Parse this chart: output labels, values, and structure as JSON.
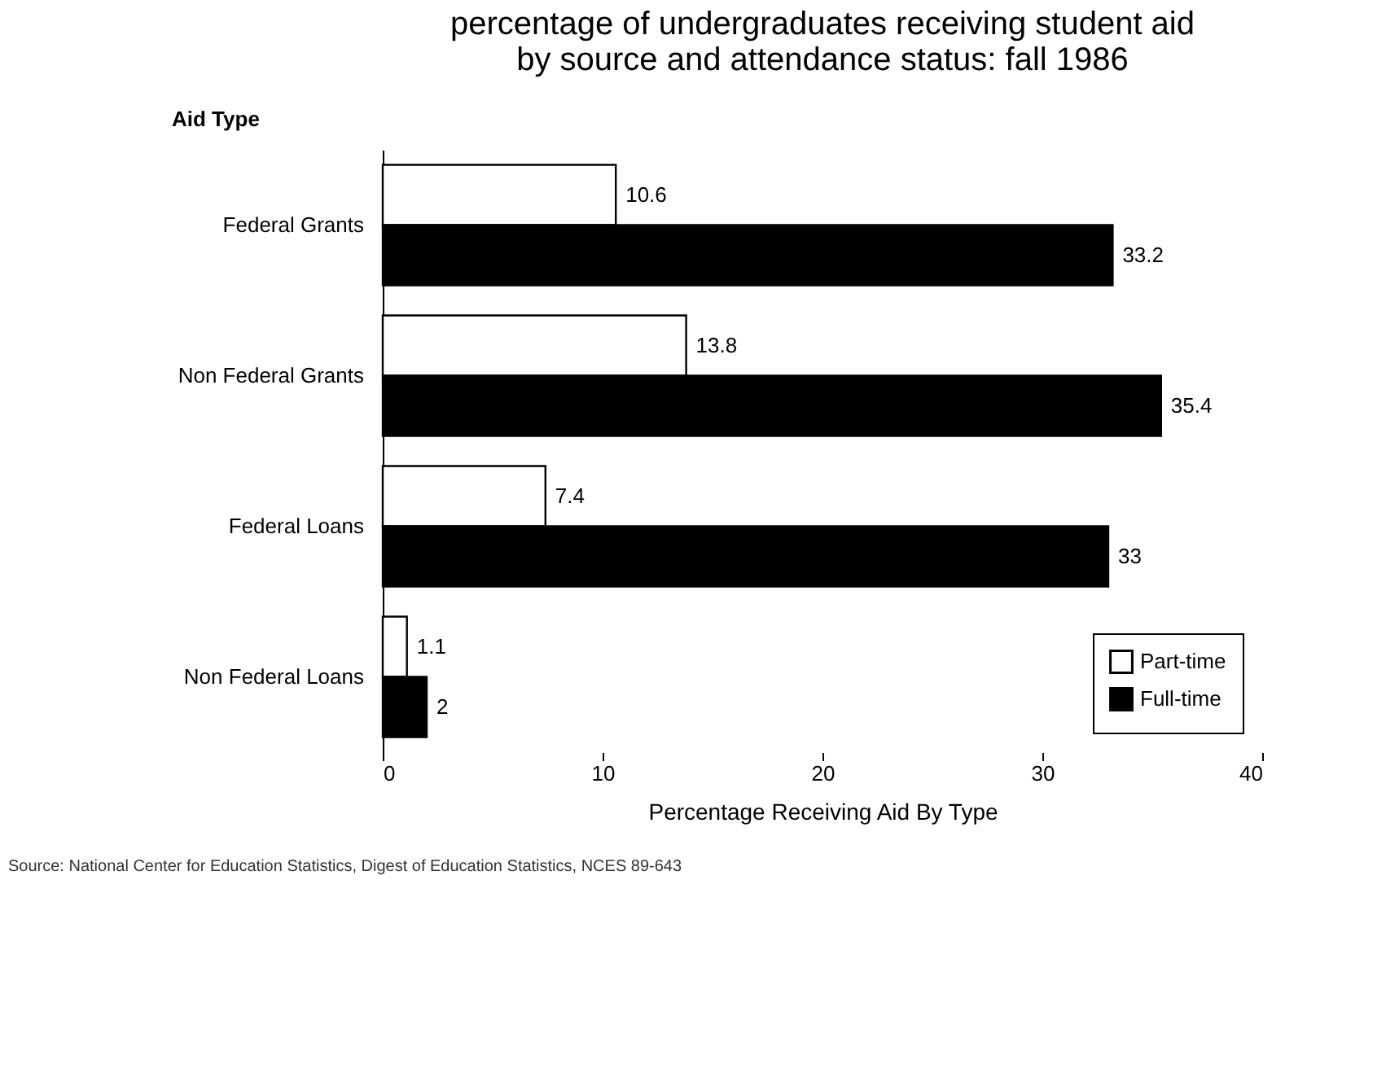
{
  "chart_data": {
    "type": "bar",
    "orientation": "horizontal",
    "title": "percentage of undergraduates receiving student aid\nby source and attendance status:  fall 1986",
    "xlabel": "Percentage Receiving Aid By Type",
    "ylabel": "Aid Type",
    "categories": [
      "Federal Grants",
      "Non Federal Grants",
      "Federal Loans",
      "Non Federal Loans"
    ],
    "series": [
      {
        "name": "Part-time",
        "color": "#ffffff",
        "values": [
          10.6,
          13.8,
          7.4,
          1.1
        ]
      },
      {
        "name": "Full-time",
        "color": "#000000",
        "values": [
          33.2,
          35.4,
          33,
          2
        ]
      }
    ],
    "xlim": [
      0,
      40
    ],
    "xticks": [
      0,
      10,
      20,
      30,
      40
    ],
    "data_labels": true,
    "grid": false,
    "legend": "bottom right",
    "annotations": [
      "Source: National Center for Education Statistics, Digest of Education Statistics, NCES 89-643"
    ]
  }
}
